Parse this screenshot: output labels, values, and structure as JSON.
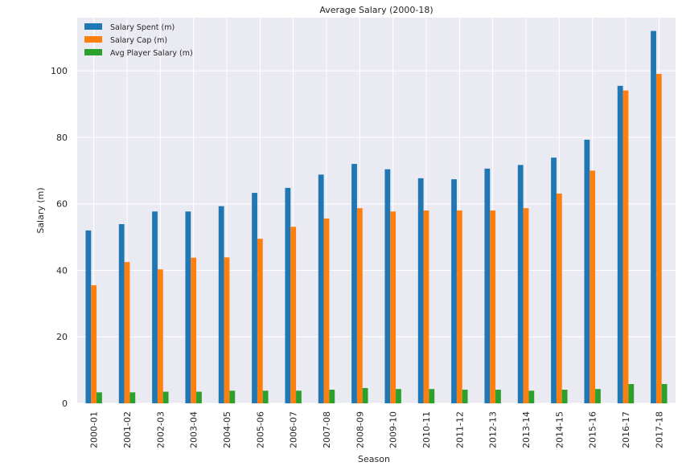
{
  "chart_data": {
    "type": "bar",
    "title": "Average Salary (2000-18)",
    "xlabel": "Season",
    "ylabel": "Salary (m)",
    "ylim": [
      0,
      116
    ],
    "yticks": [
      0,
      20,
      40,
      60,
      80,
      100
    ],
    "grid": true,
    "legend_position": "top-left",
    "categories": [
      "2000-01",
      "2001-02",
      "2002-03",
      "2003-04",
      "2004-05",
      "2005-06",
      "2006-07",
      "2007-08",
      "2008-09",
      "2009-10",
      "2010-11",
      "2011-12",
      "2012-13",
      "2013-14",
      "2014-15",
      "2015-16",
      "2016-17",
      "2017-18"
    ],
    "series": [
      {
        "name": "Salary Spent (m)",
        "color": "#1f77b4",
        "values": [
          52.0,
          53.9,
          57.7,
          57.7,
          59.3,
          63.3,
          64.8,
          68.8,
          72.0,
          70.4,
          67.7,
          67.4,
          70.6,
          71.7,
          73.9,
          79.3,
          95.5,
          112.0
        ]
      },
      {
        "name": "Salary Cap (m)",
        "color": "#ff7f0e",
        "values": [
          35.5,
          42.5,
          40.3,
          43.8,
          43.9,
          49.5,
          53.1,
          55.6,
          58.7,
          57.7,
          58.0,
          58.0,
          58.0,
          58.7,
          63.1,
          70.0,
          94.1,
          99.1
        ]
      },
      {
        "name": "Avg Player Salary (m)",
        "color": "#2ca02c",
        "values": [
          3.3,
          3.3,
          3.5,
          3.5,
          3.8,
          3.8,
          3.8,
          4.1,
          4.6,
          4.3,
          4.3,
          4.1,
          4.1,
          3.8,
          4.1,
          4.3,
          5.8,
          5.8
        ]
      }
    ]
  }
}
